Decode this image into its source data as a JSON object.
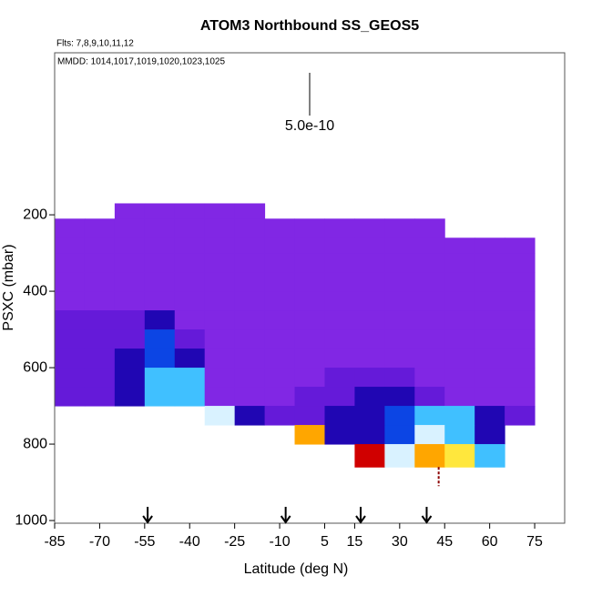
{
  "chart_data": {
    "type": "heatmap",
    "title": "ATOM3 Northbound SS_GEOS5",
    "flights": "Flts: 7,8,9,10,11,12",
    "dates": "MMDD: 1014,1017,1019,1020,1023,1025",
    "scale_label": "5.0e-10",
    "scale_max": 5e-10,
    "x_label": "Latitude (deg N)",
    "y_label": "PSXC (mbar)",
    "xlim": [
      -85,
      85
    ],
    "ylim": [
      1007,
      -224
    ],
    "xticks": [
      -85,
      -70,
      -55,
      -40,
      -25,
      -10,
      5,
      15,
      30,
      45,
      60,
      75
    ],
    "yticks": [
      200,
      400,
      600,
      800,
      1000
    ],
    "colors": [
      "#8a2be8",
      "#5010d0",
      "#0000a0",
      "#1060ff",
      "#40c0ff",
      "#ffffff",
      "#ffe000",
      "#ff9000",
      "#d00000"
    ],
    "x_edges": [
      -85,
      -75,
      -65,
      -55,
      -45,
      -35,
      -25,
      -15,
      -5,
      5,
      15,
      25,
      35,
      45,
      55,
      65,
      75
    ],
    "y_edges": [
      170,
      210,
      260,
      300,
      350,
      400,
      450,
      500,
      550,
      600,
      650,
      700,
      750,
      800,
      860
    ],
    "z": [
      [
        null,
        null,
        1e-11,
        1e-11,
        1e-11,
        1e-11,
        1e-11,
        null,
        null,
        null,
        null,
        null,
        null,
        null,
        null,
        null
      ],
      [
        1e-11,
        1e-11,
        1e-11,
        1e-11,
        1e-11,
        1e-11,
        1e-11,
        1e-11,
        1e-11,
        1e-11,
        1e-11,
        1e-11,
        1e-11,
        null,
        null,
        null
      ],
      [
        1e-11,
        1e-11,
        1e-11,
        1e-11,
        1e-11,
        1e-11,
        1e-11,
        1e-11,
        1e-11,
        1e-11,
        1e-11,
        1e-11,
        1e-11,
        1e-11,
        1e-11,
        1e-11
      ],
      [
        1e-11,
        1e-11,
        1e-11,
        1e-11,
        1e-11,
        1e-11,
        1e-11,
        1e-11,
        1e-11,
        1e-11,
        1e-11,
        1e-11,
        1e-11,
        1e-11,
        1e-11,
        1e-11
      ],
      [
        1e-11,
        1e-11,
        1e-11,
        1e-11,
        1e-11,
        1e-11,
        1e-11,
        1e-11,
        1e-11,
        1e-11,
        1e-11,
        1e-11,
        1e-11,
        1e-11,
        1e-11,
        1e-11
      ],
      [
        1e-11,
        1e-11,
        1e-11,
        1e-11,
        1e-11,
        1e-11,
        1e-11,
        1e-11,
        1e-11,
        1e-11,
        1e-11,
        1e-11,
        1e-11,
        1e-11,
        1e-11,
        1e-11
      ],
      [
        4e-11,
        4e-11,
        4e-11,
        1e-10,
        1e-11,
        1e-11,
        1e-11,
        1e-11,
        1e-11,
        1e-11,
        1e-11,
        1e-11,
        1e-11,
        1e-11,
        1e-11,
        1e-11
      ],
      [
        4e-11,
        4e-11,
        4e-11,
        1.7e-10,
        4e-11,
        1e-11,
        1e-11,
        1e-11,
        1e-11,
        1e-11,
        1e-11,
        1e-11,
        1e-11,
        1e-11,
        1e-11,
        1e-11
      ],
      [
        4e-11,
        4e-11,
        1e-10,
        1.7e-10,
        1e-10,
        1e-11,
        1e-11,
        1e-11,
        1e-11,
        1e-11,
        1e-11,
        1e-11,
        1e-11,
        1e-11,
        1e-11,
        1e-11
      ],
      [
        4e-11,
        4e-11,
        1e-10,
        2.5e-10,
        2.5e-10,
        1e-11,
        1e-11,
        1e-11,
        1e-11,
        4e-11,
        4e-11,
        4e-11,
        1e-11,
        1e-11,
        1e-11,
        1e-11
      ],
      [
        4e-11,
        4e-11,
        1e-10,
        2.5e-10,
        2.5e-10,
        1e-11,
        1e-11,
        1e-11,
        4e-11,
        4e-11,
        1e-10,
        1e-10,
        4e-11,
        1e-11,
        1e-11,
        1e-11
      ],
      [
        null,
        null,
        null,
        null,
        null,
        3e-10,
        1e-10,
        4e-11,
        4e-11,
        1e-10,
        1e-10,
        1.7e-10,
        2.5e-10,
        2.5e-10,
        1e-10,
        4e-11
      ],
      [
        null,
        null,
        null,
        null,
        null,
        null,
        null,
        null,
        4.2e-10,
        1e-10,
        1e-10,
        1.7e-10,
        3e-10,
        2.5e-10,
        1e-10,
        null
      ],
      [
        null,
        null,
        null,
        null,
        null,
        null,
        null,
        null,
        null,
        null,
        5e-10,
        3e-10,
        4.2e-10,
        3.6e-10,
        2.5e-10,
        null
      ]
    ],
    "flight_arrows": [
      -54,
      -8,
      17,
      39
    ],
    "marker_line": {
      "x": 43,
      "y": [
        860,
        910
      ],
      "color": "#8b0000"
    }
  }
}
